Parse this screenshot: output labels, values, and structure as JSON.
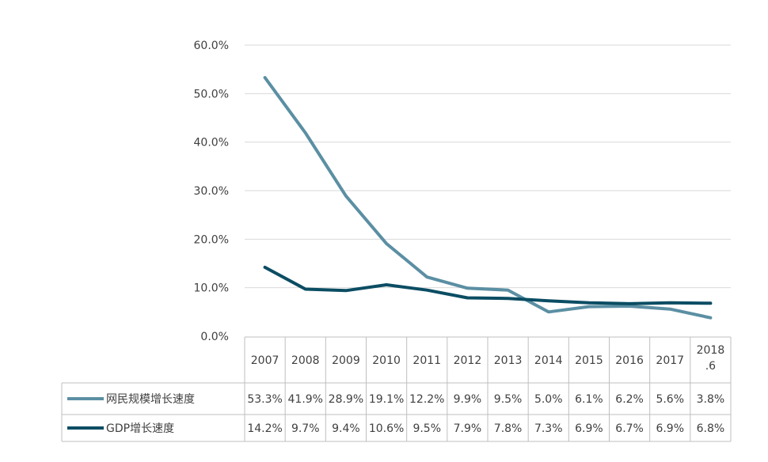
{
  "chart_data": {
    "type": "line",
    "categories": [
      "2007",
      "2008",
      "2009",
      "2010",
      "2011",
      "2012",
      "2013",
      "2014",
      "2015",
      "2016",
      "2017",
      "2018.6"
    ],
    "category_labels": [
      [
        "2007"
      ],
      [
        "2008"
      ],
      [
        "2009"
      ],
      [
        "2010"
      ],
      [
        "2011"
      ],
      [
        "2012"
      ],
      [
        "2013"
      ],
      [
        "2014"
      ],
      [
        "2015"
      ],
      [
        "2016"
      ],
      [
        "2017"
      ],
      [
        "2018",
        ".6"
      ]
    ],
    "series": [
      {
        "name": "网民规模增长速度",
        "color": "#5b8fa3",
        "values": [
          53.3,
          41.9,
          28.9,
          19.1,
          12.2,
          9.9,
          9.5,
          5.0,
          6.1,
          6.2,
          5.6,
          3.8
        ],
        "labels": [
          "53.3%",
          "41.9%",
          "28.9%",
          "19.1%",
          "12.2%",
          "9.9%",
          "9.5%",
          "5.0%",
          "6.1%",
          "6.2%",
          "5.6%",
          "3.8%"
        ]
      },
      {
        "name": "GDP增长速度",
        "color": "#0b4d63",
        "values": [
          14.2,
          9.7,
          9.4,
          10.6,
          9.5,
          7.9,
          7.8,
          7.3,
          6.9,
          6.7,
          6.9,
          6.8
        ],
        "labels": [
          "14.2%",
          "9.7%",
          "9.4%",
          "10.6%",
          "9.5%",
          "7.9%",
          "7.8%",
          "7.3%",
          "6.9%",
          "6.7%",
          "6.9%",
          "6.8%"
        ]
      }
    ],
    "yticks": [
      "0.0%",
      "10.0%",
      "20.0%",
      "30.0%",
      "40.0%",
      "50.0%",
      "60.0%"
    ],
    "ylim": [
      0,
      60
    ],
    "grid": true,
    "legend": "data-table"
  }
}
